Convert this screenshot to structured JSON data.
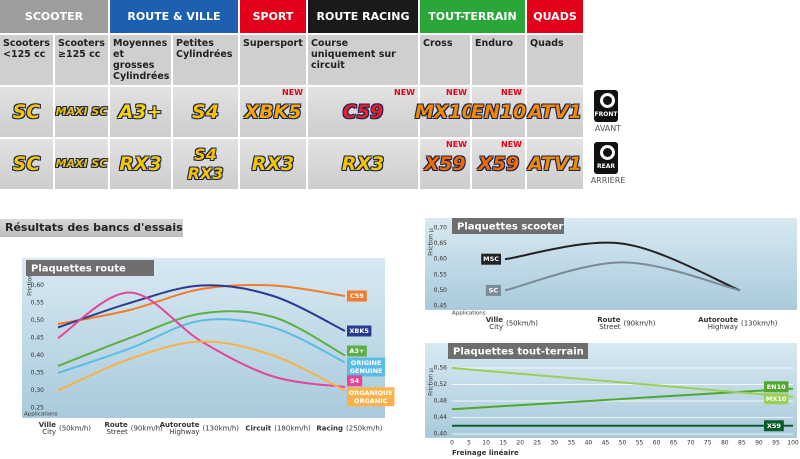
{
  "header": {
    "section_title": "Résultats des bancs d'essais"
  },
  "table": {
    "groups": [
      {
        "label": "SCOOTER",
        "color": "#9d9d9d",
        "columns": [
          "Scooters <125 cc",
          "Scooters ≥125 cc"
        ]
      },
      {
        "label": "ROUTE & VILLE",
        "color": "#1d5fb0",
        "columns": [
          "Moyennes et grosses Cylindrées",
          "Petites Cylindrées"
        ]
      },
      {
        "label": "SPORT",
        "color": "#e3001b",
        "columns": [
          "Supersport"
        ]
      },
      {
        "label": "ROUTE RACING",
        "color": "#1a1a1a",
        "columns": [
          "Course uniquement sur circuit"
        ]
      },
      {
        "label": "TOUT-TERRAIN",
        "color": "#2aa63a",
        "columns": [
          "Cross",
          "Enduro"
        ]
      },
      {
        "label": "QUADS",
        "color": "#e3001b",
        "columns": [
          "Quads"
        ]
      }
    ],
    "rows": [
      {
        "label": "FRONT",
        "sub": "AVANT",
        "cells": [
          {
            "logos": [
              {
                "text": "SC",
                "color": "#f4c600"
              }
            ]
          },
          {
            "logos": [
              {
                "text": "MAXI SC",
                "color": "#e8c300"
              }
            ]
          },
          {
            "logos": [
              {
                "text": "A3+",
                "color": "#f6d300"
              }
            ]
          },
          {
            "logos": [
              {
                "text": "S4",
                "color": "#f6c200"
              }
            ]
          },
          {
            "logos": [
              {
                "text": "XBK5",
                "color": "#f5a800"
              }
            ],
            "badge": "NEW"
          },
          {
            "logos": [
              {
                "text": "C59",
                "color": "#e4212a"
              }
            ],
            "badge": "NEW"
          },
          {
            "logos": [
              {
                "text": "MX10",
                "color": "#f08a00"
              }
            ],
            "badge": "NEW"
          },
          {
            "logos": [
              {
                "text": "EN10",
                "color": "#f08a00"
              }
            ],
            "badge": "NEW"
          },
          {
            "logos": [
              {
                "text": "ATV1",
                "color": "#f08a00"
              }
            ]
          }
        ]
      },
      {
        "label": "REAR",
        "sub": "ARRIÈRE",
        "cells": [
          {
            "logos": [
              {
                "text": "SC",
                "color": "#f4c600"
              }
            ]
          },
          {
            "logos": [
              {
                "text": "MAXI SC",
                "color": "#e8c300"
              }
            ]
          },
          {
            "logos": [
              {
                "text": "RX3",
                "color": "#f4c600"
              }
            ]
          },
          {
            "logos": [
              {
                "text": "S4",
                "color": "#f6c200"
              },
              {
                "text": "RX3",
                "color": "#f4c600"
              }
            ]
          },
          {
            "logos": [
              {
                "text": "RX3",
                "color": "#f4c600"
              }
            ]
          },
          {
            "logos": [
              {
                "text": "RX3",
                "color": "#f4c600"
              }
            ]
          },
          {
            "logos": [
              {
                "text": "X59",
                "color": "#f06a00"
              }
            ],
            "badge": "NEW"
          },
          {
            "logos": [
              {
                "text": "X59",
                "color": "#f06a00"
              }
            ],
            "badge": "NEW"
          },
          {
            "logos": [
              {
                "text": "ATV1",
                "color": "#f08a00"
              }
            ]
          }
        ]
      }
    ]
  },
  "chart_data": [
    {
      "type": "line",
      "title": "Plaquettes route",
      "ylabel": "Friction µ",
      "xlabel": "Applications",
      "categories": [
        "Ville",
        "Route",
        "Autoroute",
        "Circuit",
        "Racing"
      ],
      "categories_en": [
        "City",
        "Street",
        "Highway",
        null,
        null
      ],
      "speeds": [
        "(50km/h)",
        "(90km/h)",
        "(130km/h)",
        "(180km/h)",
        "(250km/h)"
      ],
      "ylim": [
        0.25,
        0.65
      ],
      "yticks": [
        {
          "value": 0.25,
          "label": "0,25"
        },
        {
          "value": 0.3,
          "label": "0,30"
        },
        {
          "value": 0.35,
          "label": "0,35"
        },
        {
          "value": 0.4,
          "label": "0,40"
        },
        {
          "value": 0.45,
          "label": "0,45"
        },
        {
          "value": 0.5,
          "label": "0,50"
        },
        {
          "value": 0.55,
          "label": "0,55"
        },
        {
          "value": 0.6,
          "label": "0,60"
        },
        {
          "value": 0.65,
          "label": "0,65"
        }
      ],
      "grid": false,
      "legend": "right",
      "series": [
        {
          "name": "C59",
          "color": "#f47b2a",
          "values": [
            0.49,
            0.53,
            0.59,
            0.6,
            0.57
          ]
        },
        {
          "name": "XBK5",
          "color": "#2b3990",
          "values": [
            0.48,
            0.55,
            0.6,
            0.57,
            0.47
          ]
        },
        {
          "name": "A3+",
          "color": "#5dae47",
          "values": [
            0.37,
            0.45,
            0.52,
            0.51,
            0.4
          ]
        },
        {
          "name": "ORIGINE",
          "name_en": "GENUINE",
          "color": "#5bbde4",
          "values": [
            0.35,
            0.42,
            0.5,
            0.48,
            0.38
          ]
        },
        {
          "name": "S4",
          "color": "#e2469b",
          "values": [
            0.45,
            0.58,
            0.44,
            0.34,
            0.31
          ]
        },
        {
          "name": "ORGANIQUE",
          "name_en": "ORGANIC",
          "color": "#f7b24b",
          "values": [
            0.3,
            0.39,
            0.44,
            0.4,
            0.3
          ]
        }
      ]
    },
    {
      "type": "line",
      "title": "Plaquettes scooter",
      "ylabel": "Friction µ",
      "xlabel": "Applications",
      "categories": [
        "Ville",
        "Route",
        "Autoroute"
      ],
      "categories_en": [
        "City",
        "Street",
        "Highway"
      ],
      "speeds": [
        "(50km/h)",
        "(90km/h)",
        "(130km/h)"
      ],
      "ylim": [
        0.45,
        0.7
      ],
      "yticks": [
        {
          "value": 0.45,
          "label": "0,45"
        },
        {
          "value": 0.5,
          "label": "0,50"
        },
        {
          "value": 0.55,
          "label": "0,55"
        },
        {
          "value": 0.6,
          "label": "0,60"
        },
        {
          "value": 0.65,
          "label": "0,65"
        },
        {
          "value": 0.7,
          "label": "0,70"
        }
      ],
      "grid": false,
      "legend": "left",
      "series": [
        {
          "name": "MSC",
          "color": "#222222",
          "values": [
            0.6,
            0.65,
            0.5
          ]
        },
        {
          "name": "SC",
          "color": "#7b8c97",
          "values": [
            0.5,
            0.59,
            0.5
          ]
        }
      ]
    },
    {
      "type": "line",
      "title": "Plaquettes tout-terrain",
      "ylabel": "Friction µ",
      "xlabel": "Freinage linéaire",
      "x": [
        0,
        100
      ],
      "xlim": [
        0,
        100
      ],
      "xticks": [
        0,
        5,
        10,
        15,
        20,
        25,
        30,
        35,
        40,
        45,
        50,
        55,
        60,
        65,
        70,
        75,
        80,
        85,
        90,
        95,
        100
      ],
      "ylim": [
        0.4,
        0.56
      ],
      "yticks": [
        {
          "value": 0.4,
          "label": "0,40"
        },
        {
          "value": 0.44,
          "label": "0,44"
        },
        {
          "value": 0.48,
          "label": "0,48"
        },
        {
          "value": 0.52,
          "label": "0,52"
        },
        {
          "value": 0.56,
          "label": "0,56"
        }
      ],
      "grid": true,
      "legend": "right",
      "series": [
        {
          "name": "EN10",
          "color": "#4fa72f",
          "values": [
            0.46,
            0.51
          ]
        },
        {
          "name": "MX10",
          "color": "#9ccf57",
          "values": [
            0.56,
            0.49
          ]
        },
        {
          "name": "X59",
          "color": "#0d5b2c",
          "values": [
            0.42,
            0.42
          ]
        }
      ]
    }
  ]
}
